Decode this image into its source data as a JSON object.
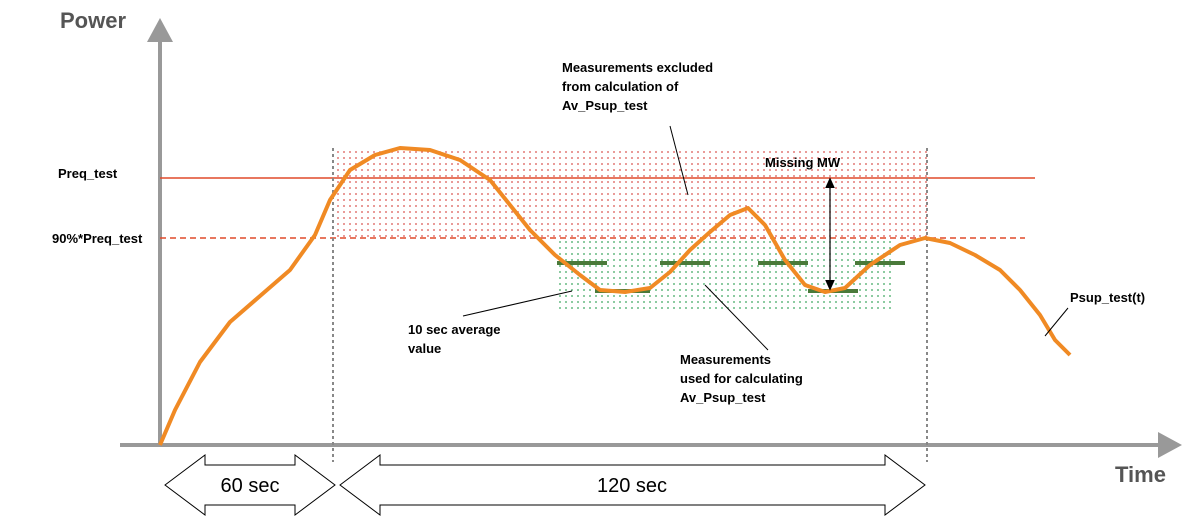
{
  "axes": {
    "y_label": "Power",
    "x_label": "Time"
  },
  "levels": {
    "required": "Preq_test",
    "ninety_percent": "90%*Preq_test"
  },
  "annotations": {
    "excluded": [
      "Measurements excluded",
      "from calculation of",
      "Av_Psup_test"
    ],
    "used": [
      "Measurements",
      "used for calculating",
      "Av_Psup_test"
    ],
    "average": [
      "10 sec average",
      "value"
    ],
    "missing": "Missing MW",
    "curve": "Psup_test(t)"
  },
  "durations": {
    "first": "60 sec",
    "second": "120 sec"
  }
}
